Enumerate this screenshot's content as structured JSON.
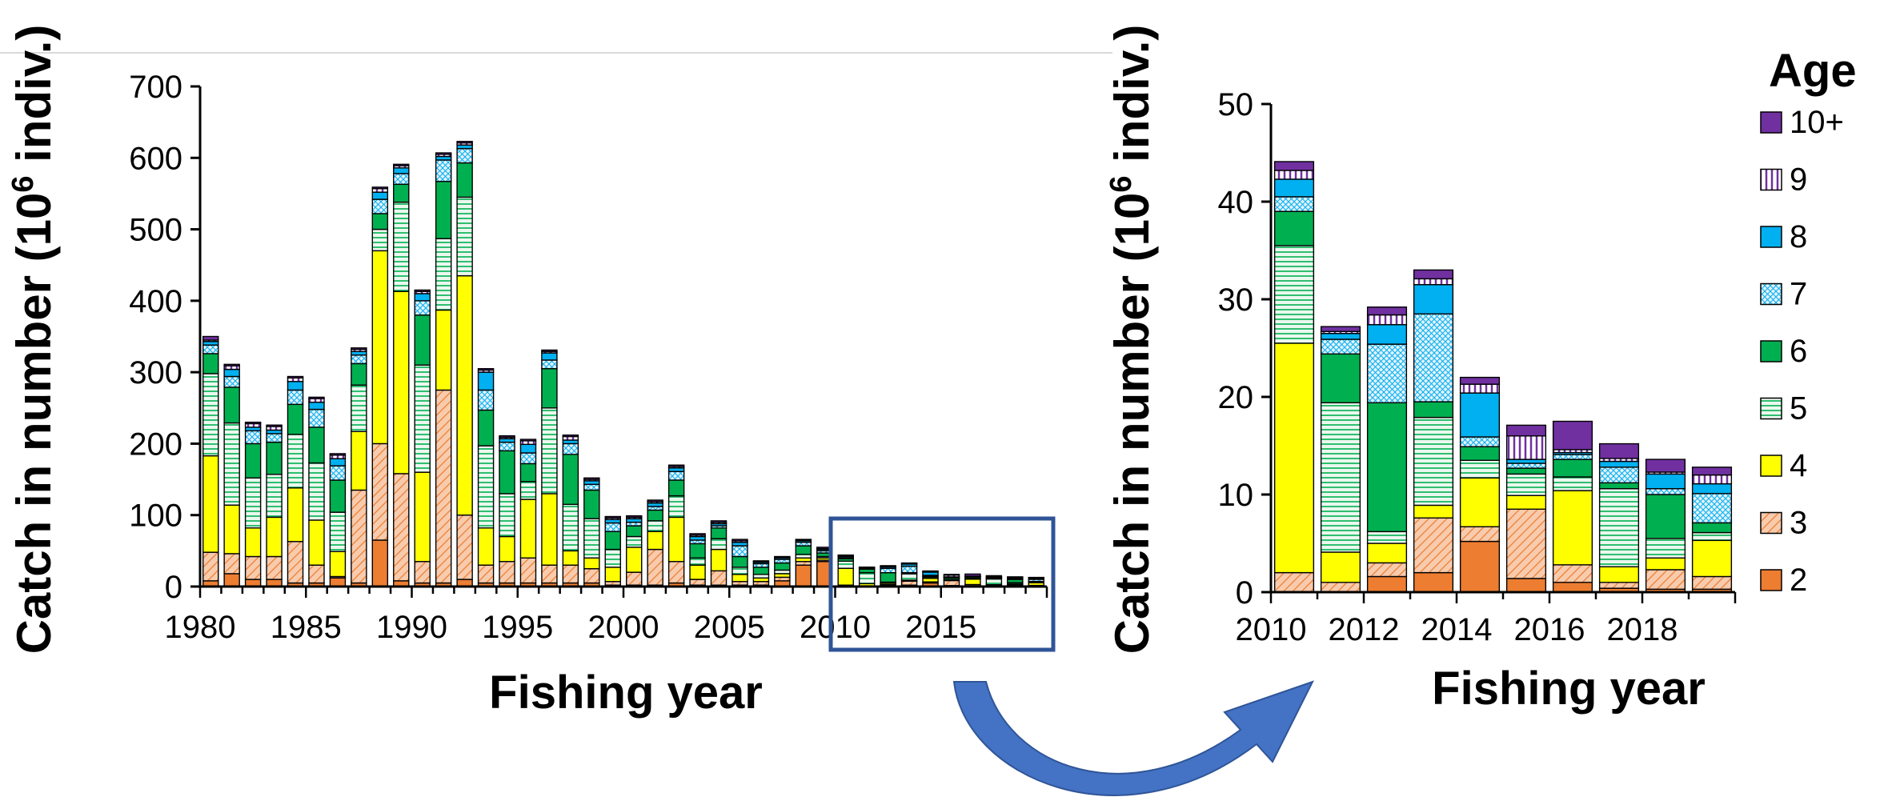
{
  "chart_data": [
    {
      "type": "bar",
      "stacked": true,
      "title": "",
      "xlabel": "Fishing year",
      "ylabel": "Catch in number (10",
      "ylabel_sup": "6",
      "ylabel_tail": " indiv.)",
      "ylim": [
        0,
        700
      ],
      "yticks": [
        0,
        100,
        200,
        300,
        400,
        500,
        600,
        700
      ],
      "ytick_labels": [
        "0",
        "100",
        "200",
        "300",
        "400",
        "500",
        "600",
        "700"
      ],
      "xtick_labels": [
        {
          "year": 1980,
          "label": "1980"
        },
        {
          "year": 1985,
          "label": "1985"
        },
        {
          "year": 1990,
          "label": "1990"
        },
        {
          "year": 1995,
          "label": "1995"
        },
        {
          "year": 2000,
          "label": "2000"
        },
        {
          "year": 2005,
          "label": "2005"
        },
        {
          "year": 2010,
          "label": "2010"
        },
        {
          "year": 2015,
          "label": "2015"
        }
      ],
      "categories": [
        1980,
        1981,
        1982,
        1983,
        1984,
        1985,
        1986,
        1987,
        1988,
        1989,
        1990,
        1991,
        1992,
        1993,
        1994,
        1995,
        1996,
        1997,
        1998,
        1999,
        2000,
        2001,
        2002,
        2003,
        2004,
        2005,
        2006,
        2007,
        2008,
        2009,
        2010,
        2011,
        2012,
        2013,
        2014,
        2015,
        2016,
        2017,
        2018,
        2019
      ],
      "series": [
        {
          "name": "2",
          "values": [
            8,
            18,
            10,
            10,
            5,
            5,
            12,
            5,
            65,
            8,
            5,
            5,
            10,
            5,
            5,
            5,
            5,
            5,
            5,
            2,
            2,
            2,
            5,
            2,
            2,
            2,
            2,
            8,
            30,
            35,
            0,
            0,
            1.6,
            2,
            5,
            1.4,
            1,
            0.4,
            0.3,
            0.3
          ]
        },
        {
          "name": "3",
          "values": [
            40,
            28,
            32,
            32,
            58,
            25,
            2,
            130,
            135,
            150,
            30,
            270,
            90,
            25,
            30,
            35,
            25,
            25,
            20,
            5,
            18,
            50,
            30,
            8,
            20,
            5,
            5,
            5,
            5,
            2,
            2,
            1,
            1.4,
            5.6,
            1.5,
            7,
            1.8,
            0.6,
            2,
            1.3
          ]
        },
        {
          "name": "4",
          "values": [
            135,
            68,
            40,
            55,
            75,
            63,
            35,
            82,
            270,
            255,
            125,
            112,
            335,
            52,
            35,
            82,
            100,
            20,
            15,
            20,
            35,
            25,
            62,
            20,
            30,
            10,
            5,
            5,
            5,
            3,
            23.5,
            3.1,
            2,
            1.3,
            5,
            1.4,
            7.6,
            1.6,
            1.2,
            3.7
          ]
        },
        {
          "name": "5",
          "values": [
            115,
            115,
            70,
            60,
            75,
            80,
            55,
            65,
            30,
            125,
            150,
            100,
            110,
            115,
            60,
            25,
            120,
            65,
            55,
            25,
            15,
            15,
            30,
            10,
            15,
            10,
            5,
            5,
            5,
            2,
            10,
            15.3,
            1.2,
            9,
            1.8,
            2.2,
            1.4,
            8,
            2,
            0.8
          ]
        },
        {
          "name": "6",
          "values": [
            28,
            50,
            48,
            45,
            42,
            50,
            45,
            30,
            22,
            25,
            70,
            80,
            48,
            50,
            60,
            25,
            55,
            70,
            40,
            25,
            15,
            15,
            22,
            20,
            15,
            15,
            10,
            10,
            12,
            5,
            3.5,
            5,
            13.2,
            1.6,
            1.4,
            0.6,
            1.8,
            0.6,
            4.5,
            1
          ]
        },
        {
          "name": "7",
          "values": [
            12,
            15,
            18,
            12,
            20,
            25,
            20,
            12,
            20,
            15,
            20,
            30,
            20,
            28,
            12,
            15,
            12,
            15,
            8,
            12,
            5,
            5,
            12,
            5,
            3,
            15,
            5,
            5,
            5,
            3,
            1.5,
            1.5,
            6,
            9,
            1,
            0.5,
            0.5,
            1.6,
            0.6,
            3
          ]
        },
        {
          "name": "8",
          "values": [
            5,
            10,
            5,
            5,
            12,
            10,
            10,
            5,
            10,
            8,
            10,
            5,
            5,
            25,
            5,
            12,
            10,
            5,
            5,
            5,
            5,
            5,
            5,
            5,
            3,
            5,
            2,
            2,
            2,
            2,
            1.8,
            0.6,
            2,
            3,
            4.5,
            0.4,
            0.2,
            0.6,
            1.5,
            1
          ]
        },
        {
          "name": "9",
          "values": [
            2,
            5,
            5,
            5,
            5,
            5,
            5,
            3,
            5,
            3,
            3,
            3,
            3,
            3,
            2,
            5,
            2,
            5,
            2,
            2,
            2,
            2,
            2,
            2,
            2,
            2,
            1,
            1,
            1,
            1,
            0.9,
            0.2,
            1,
            0.6,
            0.9,
            2.4,
            0.3,
            0.3,
            0.2,
            0.9
          ]
        },
        {
          "name": "10+",
          "values": [
            5,
            2,
            2,
            2,
            2,
            2,
            2,
            2,
            2,
            2,
            2,
            2,
            2,
            2,
            2,
            2,
            2,
            2,
            2,
            2,
            2,
            2,
            2,
            2,
            2,
            2,
            1,
            1,
            1,
            2,
            0.9,
            0.5,
            0.8,
            0.9,
            0.7,
            1.1,
            2.9,
            1.5,
            1.3,
            0.8
          ]
        }
      ]
    },
    {
      "type": "bar",
      "stacked": true,
      "title": "",
      "xlabel": "Fishing year",
      "ylabel": "Catch in number (10",
      "ylabel_sup": "6",
      "ylabel_tail": " indiv.)",
      "ylim": [
        0,
        50
      ],
      "yticks": [
        0,
        10,
        20,
        30,
        40,
        50
      ],
      "ytick_labels": [
        "0",
        "10",
        "20",
        "30",
        "40",
        "50"
      ],
      "xtick_labels": [
        {
          "year": 2010,
          "label": "2010"
        },
        {
          "year": 2012,
          "label": "2012"
        },
        {
          "year": 2014,
          "label": "2014"
        },
        {
          "year": 2016,
          "label": "2016"
        },
        {
          "year": 2018,
          "label": "2018"
        }
      ],
      "categories": [
        2010,
        2011,
        2012,
        2013,
        2014,
        2015,
        2016,
        2017,
        2018,
        2019
      ],
      "series": [
        {
          "name": "2",
          "values": [
            0,
            0,
            1.6,
            2,
            5.2,
            1.4,
            1,
            0.4,
            0.3,
            0.3
          ]
        },
        {
          "name": "3",
          "values": [
            2,
            1,
            1.4,
            5.6,
            1.5,
            7.1,
            1.8,
            0.6,
            2,
            1.3
          ]
        },
        {
          "name": "4",
          "values": [
            23.5,
            3.1,
            2,
            1.3,
            5,
            1.4,
            7.6,
            1.6,
            1.2,
            3.7
          ]
        },
        {
          "name": "5",
          "values": [
            10,
            15.3,
            1.2,
            9,
            1.8,
            2.2,
            1.4,
            8,
            2,
            0.8
          ]
        },
        {
          "name": "6",
          "values": [
            3.5,
            5,
            13.2,
            1.6,
            1.4,
            0.6,
            1.8,
            0.6,
            4.5,
            1
          ]
        },
        {
          "name": "7",
          "values": [
            1.5,
            1.5,
            6,
            9,
            1,
            0.5,
            0.5,
            1.6,
            0.6,
            3
          ]
        },
        {
          "name": "8",
          "values": [
            1.8,
            0.6,
            2,
            3,
            4.5,
            0.4,
            0.2,
            0.6,
            1.5,
            1
          ]
        },
        {
          "name": "9",
          "values": [
            0.9,
            0.2,
            1,
            0.6,
            0.9,
            2.4,
            0.3,
            0.3,
            0.2,
            0.9
          ]
        },
        {
          "name": "10+",
          "values": [
            0.9,
            0.5,
            0.8,
            0.9,
            0.7,
            1.1,
            2.9,
            1.5,
            1.3,
            0.8
          ]
        }
      ]
    }
  ],
  "legend": {
    "title": "Age",
    "placement": "right",
    "items": [
      "10+",
      "9",
      "8",
      "7",
      "6",
      "5",
      "4",
      "3",
      "2"
    ]
  },
  "series_styles": {
    "2": {
      "fill": "#ED7D31",
      "pattern": "solid"
    },
    "3": {
      "fill": "#F8CBAD",
      "pattern": "diagonal",
      "stroke": "#ED7D31"
    },
    "4": {
      "fill": "#FFFF00",
      "pattern": "solid"
    },
    "5": {
      "fill": "#D5F2DC",
      "pattern": "horizontal",
      "stroke": "#00B050"
    },
    "6": {
      "fill": "#00B050",
      "pattern": "solid"
    },
    "7": {
      "fill": "#DDEBF7",
      "pattern": "crosshatch",
      "stroke": "#00B0F0"
    },
    "8": {
      "fill": "#00B0F0",
      "pattern": "solid"
    },
    "9": {
      "fill": "#FFFFFF",
      "pattern": "vertical",
      "stroke": "#7030A0"
    },
    "10+": {
      "fill": "#7030A0",
      "pattern": "solid"
    }
  },
  "colors": {
    "highlight_box": "#2F5597",
    "arrow": "#4472C4",
    "axis": "#000000"
  }
}
